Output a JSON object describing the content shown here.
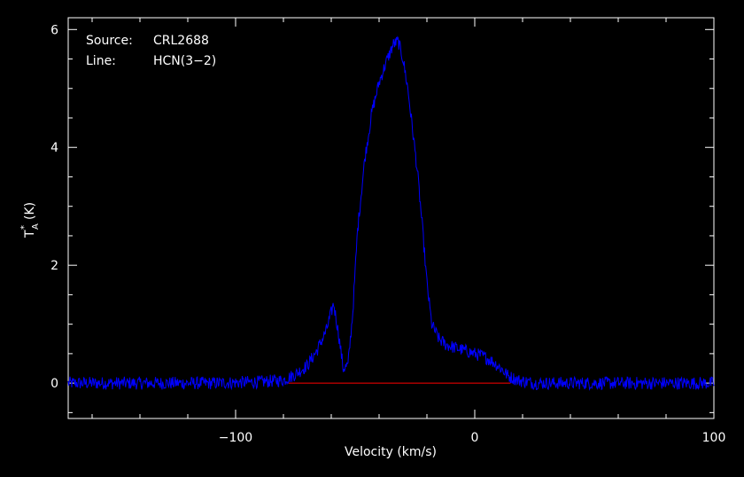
{
  "chart_data": {
    "type": "line",
    "annotations": {
      "source_label": "Source:",
      "source_value": "CRL2688",
      "line_label": "Line:",
      "line_value": "HCN(3−2)"
    },
    "xlabel": "Velocity (km/s)",
    "ylabel_main": "T",
    "ylabel_sub": "A",
    "ylabel_sup": "*",
    "ylabel_unit": "(K)",
    "xlim": [
      -170,
      100
    ],
    "ylim": [
      -0.6,
      6.2
    ],
    "x_ticks": [
      {
        "value": -100,
        "label": "−100"
      },
      {
        "value": 0,
        "label": "0"
      },
      {
        "value": 100,
        "label": "100"
      }
    ],
    "y_ticks": [
      {
        "value": 0,
        "label": "0"
      },
      {
        "value": 2,
        "label": "2"
      },
      {
        "value": 4,
        "label": "4"
      },
      {
        "value": 6,
        "label": "6"
      }
    ],
    "series": [
      {
        "color": "#0000ff",
        "x": [
          -170,
          -140,
          -110,
          -90,
          -80,
          -75,
          -70,
          -66,
          -62,
          -59,
          -57,
          -55,
          -53,
          -51,
          -49,
          -46,
          -43,
          -40,
          -37,
          -34,
          -32,
          -30,
          -28,
          -26,
          -24,
          -22,
          -20,
          -18,
          -15,
          -12,
          -8,
          -4,
          0,
          4,
          8,
          11,
          14,
          18,
          25,
          35,
          50,
          70,
          100
        ],
        "y": [
          0.0,
          0.0,
          0.0,
          0.02,
          0.05,
          0.15,
          0.3,
          0.55,
          0.9,
          1.35,
          0.85,
          0.25,
          0.3,
          1.2,
          2.6,
          3.8,
          4.6,
          5.1,
          5.45,
          5.75,
          5.8,
          5.5,
          5.0,
          4.3,
          3.6,
          2.7,
          1.7,
          1.0,
          0.75,
          0.65,
          0.6,
          0.55,
          0.5,
          0.45,
          0.35,
          0.25,
          0.12,
          0.05,
          0.0,
          0.0,
          0.0,
          0.0,
          0.0
        ]
      }
    ],
    "baseline": {
      "color": "#ff0000",
      "x": [
        -78,
        15
      ],
      "y": 0
    },
    "grid": false
  }
}
